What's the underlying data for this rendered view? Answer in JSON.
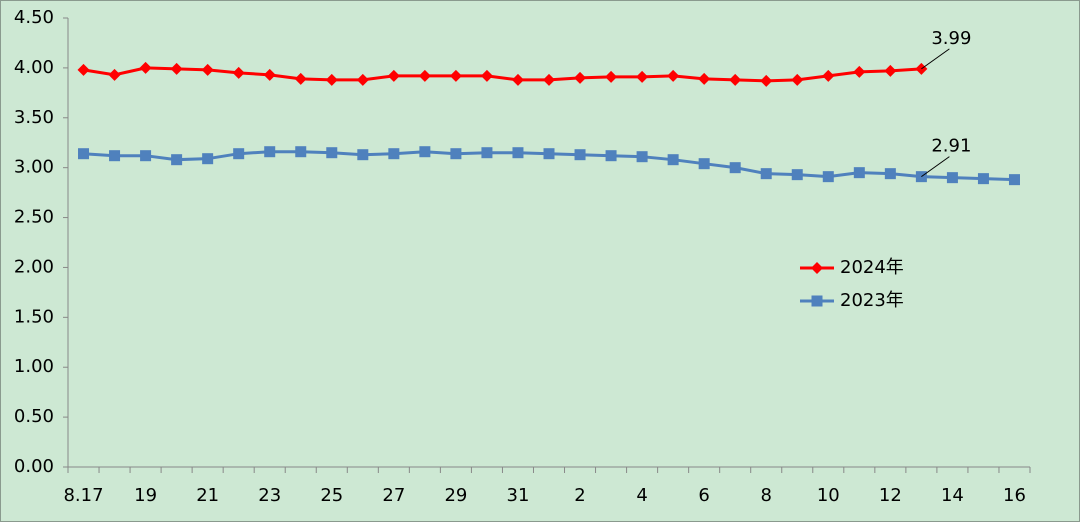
{
  "chart_data": {
    "type": "line",
    "categories": [
      "8.17",
      null,
      "19",
      null,
      "21",
      null,
      "23",
      null,
      "25",
      null,
      "27",
      null,
      "29",
      null,
      "31",
      null,
      "2",
      null,
      "4",
      null,
      "6",
      null,
      "8",
      null,
      "10",
      null,
      "12",
      null,
      "14",
      null,
      "16"
    ],
    "series": [
      {
        "name": "2024年",
        "color": "#ff0000",
        "marker": "diamond",
        "values": [
          3.98,
          3.93,
          4.0,
          3.99,
          3.98,
          3.95,
          3.93,
          3.89,
          3.88,
          3.88,
          3.92,
          3.92,
          3.92,
          3.92,
          3.88,
          3.88,
          3.9,
          3.91,
          3.91,
          3.92,
          3.89,
          3.88,
          3.87,
          3.88,
          3.92,
          3.96,
          3.97,
          3.99,
          null,
          null,
          null
        ]
      },
      {
        "name": "2023年",
        "color": "#4f81bd",
        "marker": "square",
        "values": [
          3.14,
          3.12,
          3.12,
          3.08,
          3.09,
          3.14,
          3.16,
          3.16,
          3.15,
          3.13,
          3.14,
          3.16,
          3.14,
          3.15,
          3.15,
          3.14,
          3.13,
          3.12,
          3.11,
          3.08,
          3.04,
          3.0,
          2.94,
          2.93,
          2.91,
          2.95,
          2.94,
          2.91,
          2.9,
          2.89,
          2.88
        ]
      }
    ],
    "ylim": [
      0,
      4.5
    ],
    "yticks": [
      {
        "value": 0,
        "label": "0.00"
      },
      {
        "value": 0.5,
        "label": "0.50"
      },
      {
        "value": 1,
        "label": "1.00"
      },
      {
        "value": 1.5,
        "label": "1.50"
      },
      {
        "value": 2,
        "label": "2.00"
      },
      {
        "value": 2.5,
        "label": "2.50"
      },
      {
        "value": 3,
        "label": "3.00"
      },
      {
        "value": 3.5,
        "label": "3.50"
      },
      {
        "value": 4,
        "label": "4.00"
      },
      {
        "value": 4.5,
        "label": "4.50"
      }
    ],
    "grid": false,
    "legend": "right"
  }
}
